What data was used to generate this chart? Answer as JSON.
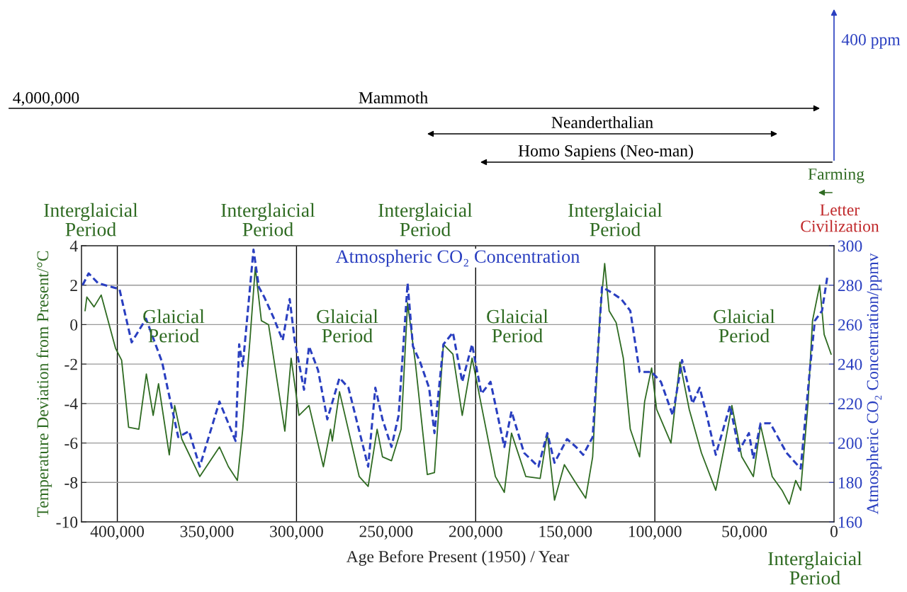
{
  "chart_data": {
    "type": "line",
    "xlabel": "Age Before Present (1950) / Year",
    "ylabel": "Temperature Deviation from Present/°C",
    "y2label": "Atmospheric CO₂ Concentration/ppmv",
    "xlim": [
      420000,
      0
    ],
    "xticks": [
      {
        "value": 400000,
        "label": "400,000"
      },
      {
        "value": 350000,
        "label": "350,000"
      },
      {
        "value": 300000,
        "label": "300,000"
      },
      {
        "value": 250000,
        "label": "250,000"
      },
      {
        "value": 200000,
        "label": "200,000"
      },
      {
        "value": 150000,
        "label": "150,000"
      },
      {
        "value": 100000,
        "label": "100,000"
      },
      {
        "value": 50000,
        "label": "50,000"
      },
      0
    ],
    "ylim": [
      -10,
      4
    ],
    "yticks": [
      -10,
      -8,
      -6,
      -4,
      -2,
      0,
      2,
      4
    ],
    "y2lim": [
      160,
      300
    ],
    "y2ticks": [
      160,
      180,
      200,
      220,
      240,
      260,
      280,
      300
    ],
    "grid": "y",
    "legend": false,
    "ref_lines": [
      {
        "axis": "x",
        "value": 400000,
        "color": "#000000"
      },
      {
        "axis": "x",
        "value": 300000,
        "color": "#000000"
      },
      {
        "axis": "x",
        "value": 200000,
        "color": "#000000"
      },
      {
        "axis": "x",
        "value": 100000,
        "color": "#000000"
      }
    ],
    "series": [
      {
        "color": "#2f6b22",
        "line_style": "solid",
        "x": [
          418000,
          417000,
          413000,
          409000,
          401000,
          397600,
          393700,
          388000,
          383800,
          380000,
          377000,
          371000,
          368000,
          364000,
          354000,
          343000,
          338000,
          333000,
          330000,
          326000,
          323000,
          319600,
          315600,
          306500,
          303000,
          298600,
          293000,
          285000,
          281000,
          280000,
          276000,
          265000,
          260000,
          255000,
          252000,
          247000,
          241600,
          238000,
          233700,
          227000,
          223000,
          218000,
          212700,
          207500,
          202000,
          196800,
          189000,
          184000,
          180000,
          172000,
          164000,
          160000,
          156000,
          150500,
          145000,
          138600,
          134700,
          130700,
          128000,
          125500,
          121600,
          117600,
          113700,
          108500,
          105700,
          101800,
          99000,
          91000,
          86000,
          80800,
          74000,
          66000,
          61000,
          57000,
          51500,
          45000,
          41000,
          34500,
          29000,
          25000,
          21400,
          18600,
          14600,
          12000,
          8000,
          5500,
          1600
        ],
        "values": [
          0.7,
          1.4,
          0.9,
          1.5,
          -1.2,
          -1.8,
          -5.2,
          -5.3,
          -2.5,
          -4.6,
          -3.0,
          -6.6,
          -4.1,
          -5.8,
          -7.7,
          -6.2,
          -7.2,
          -7.9,
          -5.3,
          -0.8,
          2.9,
          0.2,
          0.0,
          -5.4,
          -1.7,
          -4.6,
          -4.1,
          -7.2,
          -5.3,
          -5.9,
          -3.4,
          -7.7,
          -8.2,
          -5.3,
          -6.7,
          -6.9,
          -5.3,
          1.1,
          -1.9,
          -7.6,
          -7.5,
          -1.0,
          -1.5,
          -4.6,
          -1.7,
          -4.1,
          -7.7,
          -8.5,
          -5.5,
          -7.7,
          -7.8,
          -5.5,
          -8.9,
          -7.1,
          -7.9,
          -8.8,
          -6.7,
          0.4,
          3.1,
          0.7,
          0.1,
          -1.7,
          -5.3,
          -6.7,
          -3.9,
          -2.2,
          -4.3,
          -6.0,
          -1.9,
          -4.3,
          -6.5,
          -8.4,
          -6.1,
          -4.1,
          -6.7,
          -7.7,
          -5.1,
          -7.7,
          -8.4,
          -9.1,
          -7.9,
          -8.4,
          -4.1,
          0.2,
          2.0,
          -0.5,
          -1.5
        ]
      },
      {
        "name": "Atmospheric CO₂ Concentration",
        "axis": "y2",
        "color": "#2a3fc0",
        "line_style": "dashed",
        "x": [
          419400,
          416000,
          410700,
          398800,
          392000,
          384000,
          375000,
          372000,
          366000,
          360000,
          354000,
          343000,
          334000,
          332000,
          330000,
          324000,
          321000,
          318000,
          313000,
          307700,
          303800,
          301000,
          295800,
          293000,
          288000,
          282800,
          276000,
          271000,
          260000,
          256000,
          252000,
          247000,
          243000,
          238000,
          235000,
          231000,
          226000,
          223000,
          218000,
          212700,
          207500,
          202000,
          196800,
          191700,
          184000,
          180000,
          173000,
          165000,
          160000,
          156000,
          149000,
          144000,
          140000,
          134700,
          132000,
          129500,
          125500,
          118800,
          113700,
          108500,
          101800,
          96600,
          90000,
          84800,
          79000,
          75000,
          71000,
          66000,
          58000,
          53000,
          47500,
          45000,
          41000,
          35600,
          26500,
          18600,
          13500,
          10700,
          6700,
          3600
        ],
        "values": [
          280,
          286,
          281,
          278,
          251,
          263,
          241,
          228,
          203,
          206,
          188,
          221,
          201,
          250,
          239,
          298,
          279,
          274,
          264,
          252,
          273,
          252,
          227,
          249,
          237,
          212,
          233,
          228,
          188,
          228,
          212,
          198,
          214,
          281,
          249,
          241,
          228,
          205,
          250,
          256,
          231,
          250,
          225,
          231,
          198,
          216,
          195,
          188,
          205,
          190,
          202,
          198,
          194,
          203,
          243,
          279,
          277,
          273,
          267,
          236,
          236,
          231,
          214,
          242,
          220,
          228,
          214,
          194,
          219,
          196,
          205,
          192,
          210,
          210,
          195,
          187,
          237,
          262,
          267,
          285
        ]
      }
    ],
    "annotations": [
      "4,000,000",
      "Mammoth",
      "Neanderthalian",
      "Homo Sapiens (Neo-man)",
      "400 ppm",
      "Farming",
      "Letter\nCivilization",
      "Interglaicial\nPeriod",
      "Interglaicial\nPeriod",
      "Interglaicial\nPeriod",
      "Interglaicial\nPeriod",
      "Interglaicial\nPeriod",
      "Glaicial\nPeriod",
      "Glaicial\nPeriod",
      "Glaicial\nPeriod",
      "Glaicial\nPeriod"
    ]
  }
}
